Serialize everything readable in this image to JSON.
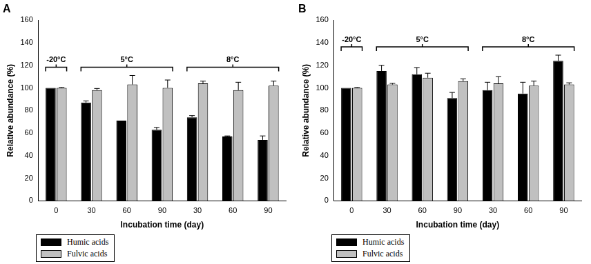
{
  "chart_data": [
    {
      "type": "bar",
      "title": "A",
      "x_label": "Incubation time (day)",
      "y_label": "Relative abundance (%)",
      "categories": [
        0,
        30,
        60,
        90,
        30,
        60,
        90
      ],
      "series": [
        {
          "name": "Humic acids",
          "color": "#000000",
          "values": [
            100,
            87,
            71,
            63,
            74,
            57,
            54
          ],
          "errors": [
            0,
            1.5,
            0,
            2,
            1.5,
            0.5,
            3.5
          ]
        },
        {
          "name": "Fulvic acids",
          "color": "#c0c0c0",
          "values": [
            100,
            98,
            103,
            100,
            104,
            98,
            102
          ],
          "errors": [
            0.5,
            1.5,
            8,
            7,
            2,
            7,
            4
          ]
        }
      ],
      "annotations": [
        {
          "text": "-20°C",
          "start": 0,
          "end": 0
        },
        {
          "text": "5°C",
          "start": 1,
          "end": 3
        },
        {
          "text": "8°C",
          "start": 4,
          "end": 6
        }
      ],
      "ylim": [
        0,
        160
      ],
      "yticks": [
        0,
        20,
        40,
        60,
        80,
        100,
        120,
        140,
        160
      ],
      "grid": false,
      "legend": "bottom-left"
    },
    {
      "type": "bar",
      "title": "B",
      "x_label": "Incubation time (day)",
      "y_label": "Relative abundance (%)",
      "categories": [
        0,
        30,
        60,
        90,
        30,
        60,
        90
      ],
      "series": [
        {
          "name": "Humic acids",
          "color": "#000000",
          "values": [
            100,
            115,
            112,
            91,
            98,
            95,
            124
          ],
          "errors": [
            0,
            5,
            6,
            5,
            7,
            10,
            5
          ]
        },
        {
          "name": "Fulvic acids",
          "color": "#c0c0c0",
          "values": [
            100,
            103,
            109,
            106,
            104,
            102,
            103
          ],
          "errors": [
            0.5,
            1,
            4,
            2,
            6,
            4,
            1.5
          ]
        }
      ],
      "annotations": [
        {
          "text": "-20°C",
          "start": 0,
          "end": 0
        },
        {
          "text": "5°C",
          "start": 1,
          "end": 3
        },
        {
          "text": "8°C",
          "start": 4,
          "end": 6
        }
      ],
      "ylim": [
        0,
        160
      ],
      "yticks": [
        0,
        20,
        40,
        60,
        80,
        100,
        120,
        140,
        160
      ],
      "grid": false,
      "legend": "bottom-left"
    }
  ]
}
